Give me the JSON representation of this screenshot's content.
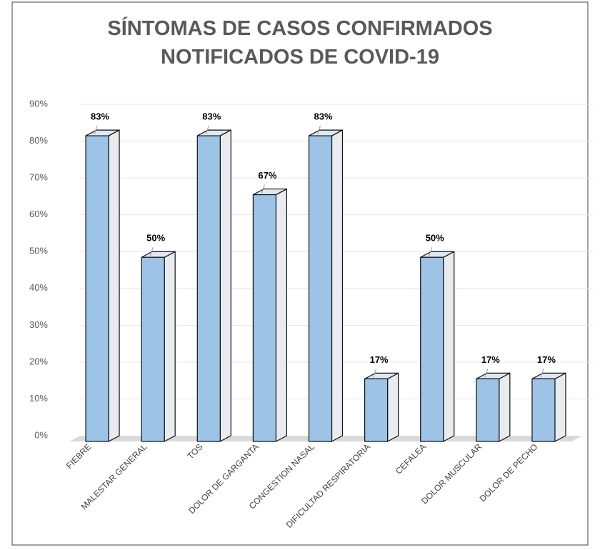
{
  "chart_data": {
    "type": "bar3d",
    "title": "SÍNTOMAS DE CASOS CONFIRMADOS NOTIFICADOS DE COVID-19",
    "categories": [
      "FIEBRE",
      "MALESTAR GENERAL",
      "TOS",
      "DOLOR DE GARGANTA",
      "CONGESTION NASAL",
      "DIFICULTAD RESPIRATORIA",
      "CEFALEA",
      "DOLOR MUSCULAR",
      "DOLOR DE PECHO"
    ],
    "values": [
      83,
      50,
      83,
      67,
      83,
      17,
      50,
      17,
      17
    ],
    "value_labels": [
      "83%",
      "50%",
      "83%",
      "67%",
      "83%",
      "17%",
      "50%",
      "17%",
      "17%"
    ],
    "color": "#9dc3e6",
    "ylim": [
      0,
      90
    ],
    "yticks": [
      {
        "value": 0,
        "label": "0%"
      },
      {
        "value": 10,
        "label": "10%"
      },
      {
        "value": 20,
        "label": "20%"
      },
      {
        "value": 30,
        "label": "30%"
      },
      {
        "value": 40,
        "label": "40%"
      },
      {
        "value": 50,
        "label": "50%"
      },
      {
        "value": 60,
        "label": "60%"
      },
      {
        "value": 70,
        "label": "70%"
      },
      {
        "value": 80,
        "label": "80%"
      },
      {
        "value": 90,
        "label": "90%"
      }
    ],
    "grid": true
  }
}
